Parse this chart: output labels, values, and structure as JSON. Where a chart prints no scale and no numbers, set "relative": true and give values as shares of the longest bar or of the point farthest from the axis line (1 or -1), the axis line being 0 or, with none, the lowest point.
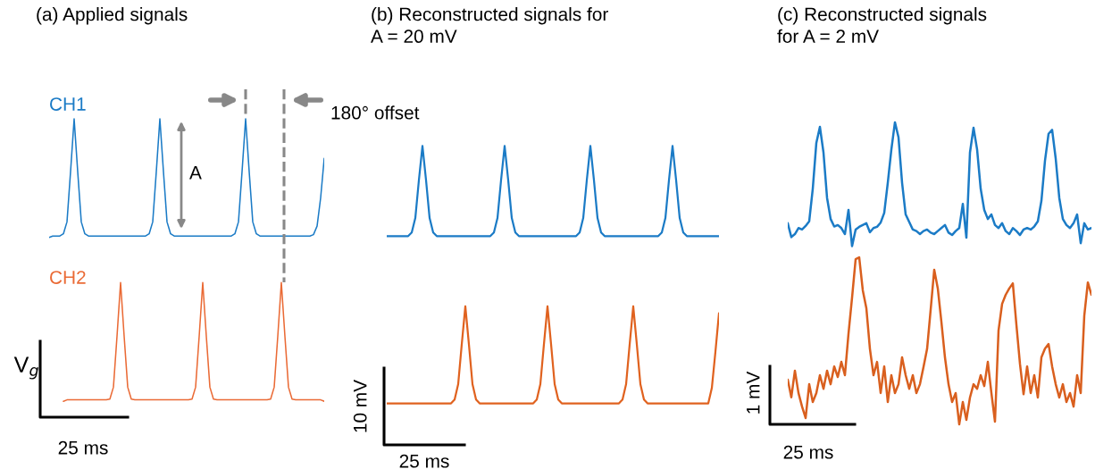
{
  "chart_data": [
    {
      "type": "line",
      "title": "(a) Applied signals",
      "relative": true,
      "tick_labels": false,
      "line_style": "solid",
      "categories": [
        null,
        null,
        null,
        null,
        null,
        null,
        null,
        null,
        null,
        null,
        null,
        null,
        null,
        null,
        null,
        null,
        null,
        null,
        null,
        null,
        null,
        null,
        null,
        null,
        null,
        null,
        null,
        null,
        null,
        null,
        null,
        null,
        null,
        null,
        null,
        null,
        null,
        null,
        null,
        null,
        null,
        null,
        null,
        null,
        null,
        null,
        null,
        null,
        null,
        null,
        null,
        null,
        null,
        null,
        null,
        null,
        null,
        null,
        null,
        null,
        null,
        null,
        null,
        null,
        null,
        null,
        null,
        null,
        null,
        null,
        null,
        null,
        null,
        null,
        null,
        null,
        null,
        null
      ],
      "series": [
        {
          "name": "CH1",
          "color": "#1b7bc6",
          "values": [
            0.58,
            0.585,
            0.585,
            0.585,
            0.593,
            0.635,
            0.813,
            1.0,
            0.813,
            0.635,
            0.593,
            0.585,
            0.585,
            0.585,
            0.585,
            0.585,
            0.585,
            0.585,
            0.585,
            0.585,
            0.585,
            0.585,
            0.585,
            0.585,
            0.585,
            0.585,
            0.585,
            0.585,
            0.593,
            0.635,
            0.813,
            1.0,
            0.813,
            0.635,
            0.593,
            0.585,
            0.585,
            0.585,
            0.585,
            0.585,
            0.585,
            0.585,
            0.585,
            0.585,
            0.585,
            0.585,
            0.585,
            0.585,
            0.585,
            0.585,
            0.585,
            0.585,
            0.593,
            0.635,
            0.813,
            1.0,
            0.813,
            0.635,
            0.593,
            0.585,
            0.585,
            0.585,
            0.585,
            0.585,
            0.585,
            0.585,
            0.585,
            0.585,
            0.585,
            0.585,
            0.585,
            0.585,
            0.585,
            0.585,
            0.59,
            0.62,
            0.72,
            0.86
          ]
        },
        {
          "name": "CH2",
          "color": "#ea6a35",
          "values": [
            null,
            null,
            null,
            null,
            0,
            0.005,
            0.005,
            0.005,
            0.005,
            0.005,
            0.005,
            0.005,
            0.005,
            0.005,
            0.005,
            0.005,
            0.005,
            0.008,
            0.05,
            0.23,
            0.42,
            0.23,
            0.05,
            0.008,
            0.005,
            0.005,
            0.005,
            0.005,
            0.005,
            0.005,
            0.005,
            0.005,
            0.005,
            0.005,
            0.005,
            0.005,
            0.005,
            0.005,
            0.005,
            0.005,
            0.008,
            0.05,
            0.23,
            0.42,
            0.23,
            0.05,
            0.008,
            0.005,
            0.005,
            0.005,
            0.005,
            0.005,
            0.005,
            0.005,
            0.005,
            0.005,
            0.005,
            0.005,
            0.005,
            0.005,
            0.005,
            0.005,
            0.008,
            0.05,
            0.23,
            0.42,
            0.23,
            0.05,
            0.008,
            0.005,
            0.005,
            0.005,
            0.005,
            0.005,
            0.005,
            0.005,
            0.005,
            0
          ]
        }
      ],
      "annotations": [
        "A",
        "180° offset",
        "V$_{g}$",
        "25 ms"
      ]
    },
    {
      "type": "line",
      "title": "(b) Reconstructed signals for\nA = 20 mV",
      "relative": true,
      "tick_labels": false,
      "line_style": "solid",
      "categories": [
        null,
        null,
        null,
        null,
        null,
        null,
        null,
        null,
        null,
        null,
        null,
        null,
        null,
        null,
        null,
        null,
        null,
        null,
        null,
        null,
        null,
        null,
        null,
        null,
        null,
        null,
        null,
        null,
        null,
        null,
        null,
        null,
        null,
        null,
        null,
        null,
        null,
        null,
        null,
        null,
        null,
        null,
        null,
        null,
        null,
        null,
        null,
        null,
        null,
        null,
        null,
        null,
        null,
        null,
        null,
        null,
        null,
        null,
        null,
        null,
        null,
        null,
        null,
        null,
        null,
        null,
        null,
        null,
        null,
        null,
        null,
        null,
        null,
        null,
        null,
        null,
        null,
        null,
        null,
        null,
        null,
        null,
        null,
        null,
        null,
        null,
        null,
        null,
        null,
        null,
        null,
        null,
        null,
        null
      ],
      "series": [
        {
          "color": "#1b7bc6",
          "values": [
            0.65,
            0.65,
            0.65,
            0.65,
            0.65,
            0.65,
            0.65,
            0.664,
            0.72,
            0.867,
            1.0,
            0.867,
            0.72,
            0.664,
            0.65,
            0.65,
            0.65,
            0.65,
            0.65,
            0.65,
            0.65,
            0.65,
            0.65,
            0.65,
            0.65,
            0.65,
            0.65,
            0.65,
            0.65,
            0.65,
            0.664,
            0.72,
            0.867,
            1.0,
            0.867,
            0.72,
            0.664,
            0.65,
            0.65,
            0.65,
            0.65,
            0.65,
            0.65,
            0.65,
            0.65,
            0.65,
            0.65,
            0.65,
            0.65,
            0.65,
            0.65,
            0.65,
            0.65,
            0.65,
            0.664,
            0.72,
            0.867,
            1.0,
            0.867,
            0.72,
            0.664,
            0.65,
            0.65,
            0.65,
            0.65,
            0.65,
            0.65,
            0.65,
            0.65,
            0.65,
            0.65,
            0.65,
            0.65,
            0.65,
            0.65,
            0.65,
            0.65,
            0.664,
            0.72,
            0.867,
            1.0,
            0.867,
            0.72,
            0.664,
            0.65,
            0.65,
            0.65,
            0.65,
            0.65,
            0.65,
            0.65,
            0.65,
            0.65,
            0.65
          ]
        },
        {
          "color": "#e0621f",
          "values": [
            0,
            0,
            0,
            0,
            0,
            0,
            0,
            0,
            0,
            0,
            0,
            0,
            0,
            0,
            0,
            0,
            0,
            0,
            0,
            0.015,
            0.075,
            0.23,
            0.377,
            0.23,
            0.075,
            0.015,
            0,
            0,
            0,
            0,
            0,
            0,
            0,
            0,
            0,
            0,
            0,
            0,
            0,
            0,
            0,
            0,
            0.015,
            0.075,
            0.23,
            0.377,
            0.23,
            0.075,
            0.015,
            0,
            0,
            0,
            0,
            0,
            0,
            0,
            0,
            0,
            0,
            0,
            0,
            0,
            0,
            0,
            0,
            0,
            0.015,
            0.075,
            0.23,
            0.377,
            0.23,
            0.075,
            0.015,
            0,
            0,
            0,
            0,
            0,
            0,
            0,
            0,
            0,
            0,
            0,
            0,
            0,
            0,
            0,
            0,
            0,
            0,
            0.06,
            0.2,
            0.35
          ]
        }
      ],
      "annotations": [
        "10 mV",
        "25 ms"
      ]
    },
    {
      "type": "line",
      "title": "(c) Reconstructed signals\nfor A = 2 mV",
      "relative": true,
      "tick_labels": false,
      "line_style": "solid",
      "categories": [
        null,
        null,
        null,
        null,
        null,
        null,
        null,
        null,
        null,
        null,
        null,
        null,
        null,
        null,
        null,
        null,
        null,
        null,
        null,
        null,
        null,
        null,
        null,
        null,
        null,
        null,
        null,
        null,
        null,
        null,
        null,
        null,
        null,
        null,
        null,
        null,
        null,
        null,
        null,
        null,
        null,
        null,
        null,
        null,
        null,
        null,
        null,
        null,
        null,
        null,
        null,
        null,
        null,
        null,
        null,
        null,
        null,
        null,
        null,
        null,
        null,
        null,
        null,
        null,
        null,
        null,
        null,
        null,
        null,
        null,
        null,
        null,
        null,
        null,
        null,
        null,
        null,
        null,
        null,
        null,
        null,
        null,
        null,
        null,
        null,
        null
      ],
      "series": [
        {
          "color": "#1b7bc6",
          "values": [
            0.666,
            0.62,
            0.63,
            0.65,
            0.645,
            0.657,
            0.672,
            0.78,
            0.932,
            0.985,
            0.9,
            0.75,
            0.68,
            0.655,
            0.66,
            0.65,
            0.63,
            0.71,
            0.59,
            0.645,
            0.654,
            0.66,
            0.666,
            0.636,
            0.65,
            0.654,
            0.668,
            0.7,
            0.8,
            0.91,
            1.0,
            0.95,
            0.8,
            0.695,
            0.67,
            0.645,
            0.64,
            0.63,
            0.64,
            0.645,
            0.635,
            0.63,
            0.64,
            0.65,
            0.66,
            0.635,
            0.627,
            0.64,
            0.65,
            0.73,
            0.618,
            0.9,
            0.982,
            0.91,
            0.78,
            0.71,
            0.68,
            0.695,
            0.66,
            0.65,
            0.666,
            0.64,
            0.63,
            0.65,
            0.64,
            0.627,
            0.645,
            0.65,
            0.645,
            0.655,
            0.672,
            0.74,
            0.873,
            0.962,
            0.975,
            0.88,
            0.75,
            0.68,
            0.66,
            0.65,
            0.666,
            0.695,
            0.6,
            0.666,
            0.645,
            0.65
          ]
        },
        {
          "color": "#d95f1e",
          "values": [
            0.148,
            0.09,
            0.178,
            0.104,
            0.059,
            0.021,
            0.133,
            0.074,
            0.104,
            0.163,
            0.118,
            0.178,
            0.133,
            0.192,
            0.157,
            0.207,
            0.163,
            0.3,
            0.42,
            0.547,
            0.553,
            0.444,
            0.385,
            0.25,
            0.163,
            0.207,
            0.104,
            0.192,
            0.074,
            0.163,
            0.104,
            0.133,
            0.222,
            0.163,
            0.118,
            0.163,
            0.104,
            0.133,
            0.19,
            0.25,
            0.38,
            0.512,
            0.45,
            0.34,
            0.222,
            0.133,
            0.074,
            0.104,
            0,
            0.074,
            0.015,
            0.089,
            0.133,
            0.118,
            0.163,
            0.127,
            0.207,
            0.104,
            0.009,
            0.311,
            0.399,
            0.429,
            0.45,
            0.467,
            0.33,
            0.2,
            0.1,
            0.192,
            0.104,
            0.163,
            0.089,
            0.222,
            0.251,
            0.266,
            0.192,
            0.133,
            0.089,
            0.133,
            0.074,
            0.104,
            0.059,
            0.163,
            0.104,
            0.36,
            0.47,
            0.429
          ]
        }
      ],
      "annotations": [
        "1 mV",
        "25 ms"
      ]
    }
  ]
}
